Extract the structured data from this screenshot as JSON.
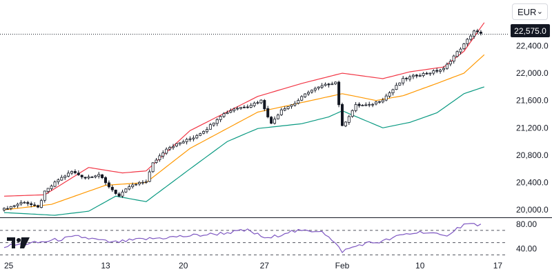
{
  "toolbar": {
    "currency": "EUR",
    "chevron_icon": "chevron-down-icon"
  },
  "logo": {
    "icon": "tradingview-logo-icon"
  },
  "colors": {
    "up": "#131722",
    "down": "#131722",
    "upper_band": "#f23645",
    "middle_band": "#ff9800",
    "lower_band": "#089981",
    "rsi": "#7e57c2",
    "grid_dash": "#50535e",
    "axis_text": "#131722",
    "price_tag_bg": "#131722"
  },
  "chart_data": {
    "type": "candlestick",
    "title": "",
    "last_price": 22575.0,
    "last_price_label": "22,575.0",
    "y_axis": {
      "ylim": [
        19900,
        22950
      ],
      "ticks": [
        20000,
        20400,
        20800,
        21200,
        21600,
        22000,
        22400
      ],
      "tick_labels": [
        "20,000.0",
        "20,400.0",
        "20,800.0",
        "21,200.0",
        "21,600.0",
        "22,000.0",
        "22,400.0"
      ]
    },
    "x_axis": {
      "ticks": [
        {
          "label": "25",
          "index": 0
        },
        {
          "label": "13",
          "index": 30
        },
        {
          "label": "20",
          "index": 53
        },
        {
          "label": "27",
          "index": 77
        },
        {
          "label": "Feb",
          "index": 100
        },
        {
          "label": "10",
          "index": 123
        },
        {
          "label": "17",
          "index": 146
        }
      ]
    },
    "candles": {
      "anchors": [
        [
          0,
          20010
        ],
        [
          6,
          20120
        ],
        [
          10,
          20030
        ],
        [
          12,
          20260
        ],
        [
          16,
          20440
        ],
        [
          20,
          20560
        ],
        [
          24,
          20470
        ],
        [
          28,
          20520
        ],
        [
          30,
          20390
        ],
        [
          34,
          20200
        ],
        [
          37,
          20340
        ],
        [
          42,
          20420
        ],
        [
          44,
          20680
        ],
        [
          48,
          20900
        ],
        [
          52,
          20980
        ],
        [
          56,
          21060
        ],
        [
          60,
          21190
        ],
        [
          64,
          21380
        ],
        [
          68,
          21480
        ],
        [
          72,
          21520
        ],
        [
          76,
          21600
        ],
        [
          79,
          21260
        ],
        [
          82,
          21470
        ],
        [
          86,
          21560
        ],
        [
          90,
          21730
        ],
        [
          94,
          21810
        ],
        [
          98,
          21870
        ],
        [
          100,
          21220
        ],
        [
          104,
          21530
        ],
        [
          108,
          21530
        ],
        [
          112,
          21620
        ],
        [
          115,
          21760
        ],
        [
          118,
          21910
        ],
        [
          122,
          21970
        ],
        [
          126,
          22010
        ],
        [
          130,
          22060
        ],
        [
          133,
          22250
        ],
        [
          136,
          22420
        ],
        [
          139,
          22620
        ],
        [
          141,
          22575
        ]
      ],
      "count": 142
    },
    "bands": {
      "upper": [
        [
          0,
          20200
        ],
        [
          12,
          20220
        ],
        [
          25,
          20620
        ],
        [
          35,
          20540
        ],
        [
          42,
          20570
        ],
        [
          55,
          21160
        ],
        [
          75,
          21660
        ],
        [
          88,
          21850
        ],
        [
          100,
          22000
        ],
        [
          112,
          21920
        ],
        [
          120,
          22020
        ],
        [
          130,
          22090
        ],
        [
          136,
          22320
        ],
        [
          142,
          22740
        ]
      ],
      "middle": [
        [
          0,
          20000
        ],
        [
          14,
          20080
        ],
        [
          30,
          20360
        ],
        [
          42,
          20400
        ],
        [
          55,
          20900
        ],
        [
          75,
          21430
        ],
        [
          88,
          21570
        ],
        [
          100,
          21700
        ],
        [
          110,
          21600
        ],
        [
          118,
          21670
        ],
        [
          128,
          21850
        ],
        [
          136,
          22000
        ],
        [
          142,
          22270
        ]
      ],
      "lower": [
        [
          0,
          19960
        ],
        [
          15,
          19920
        ],
        [
          25,
          19980
        ],
        [
          33,
          20200
        ],
        [
          42,
          20120
        ],
        [
          55,
          20600
        ],
        [
          66,
          21000
        ],
        [
          75,
          21190
        ],
        [
          88,
          21260
        ],
        [
          96,
          21360
        ],
        [
          100,
          21450
        ],
        [
          112,
          21200
        ],
        [
          120,
          21280
        ],
        [
          128,
          21420
        ],
        [
          136,
          21700
        ],
        [
          142,
          21800
        ]
      ]
    },
    "rsi": {
      "ticks": [
        80,
        40
      ],
      "tick_labels": [
        "80.00",
        "40.00"
      ],
      "ylim": [
        27,
        88
      ],
      "guides": [
        70,
        50,
        30
      ],
      "anchors": [
        [
          0,
          44
        ],
        [
          10,
          50
        ],
        [
          22,
          60
        ],
        [
          32,
          50
        ],
        [
          40,
          55
        ],
        [
          52,
          60
        ],
        [
          62,
          64
        ],
        [
          72,
          70
        ],
        [
          78,
          56
        ],
        [
          84,
          68
        ],
        [
          94,
          70
        ],
        [
          100,
          36
        ],
        [
          106,
          48
        ],
        [
          112,
          52
        ],
        [
          118,
          63
        ],
        [
          124,
          68
        ],
        [
          130,
          60
        ],
        [
          136,
          80
        ],
        [
          139,
          80
        ],
        [
          141,
          78
        ]
      ]
    }
  }
}
